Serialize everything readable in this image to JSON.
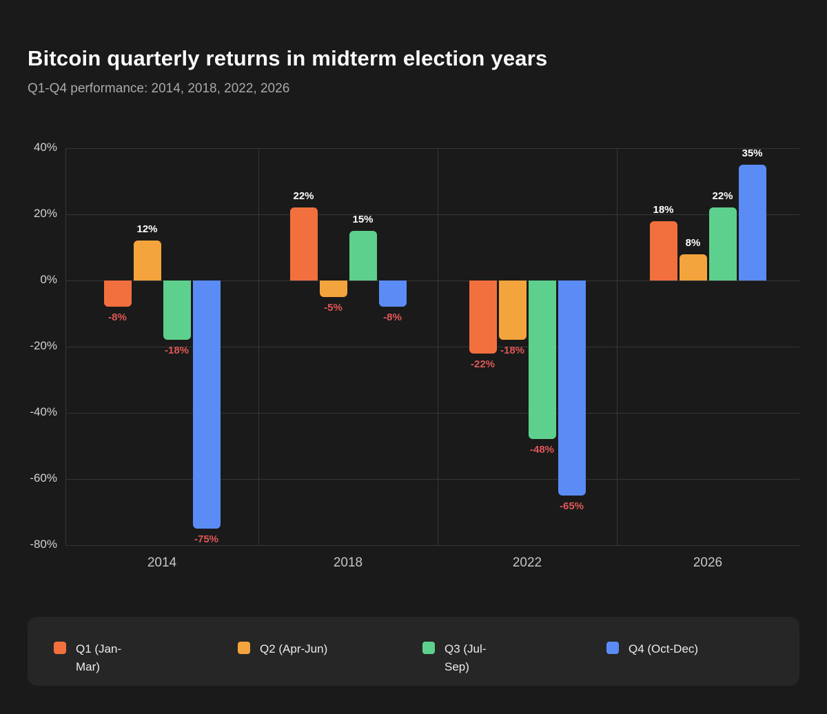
{
  "header": {
    "title": "Bitcoin quarterly returns in midterm election years",
    "subtitle": "Q1-Q4 performance: 2014, 2018, 2022, 2026"
  },
  "chart_data": {
    "type": "bar",
    "title": "Bitcoin quarterly returns in midterm election years",
    "subtitle": "Q1-Q4 performance: 2014, 2018, 2022, 2026",
    "categories": [
      "2014",
      "2018",
      "2022",
      "2026"
    ],
    "series": [
      {
        "name": "Q1 (Jan-Mar)",
        "color": "#f2703e",
        "values": [
          -8,
          22,
          -22,
          18
        ]
      },
      {
        "name": "Q2 (Apr-Jun)",
        "color": "#f4a43c",
        "values": [
          12,
          -5,
          -18,
          8
        ]
      },
      {
        "name": "Q3 (Jul-Sep)",
        "color": "#5ed08d",
        "values": [
          -18,
          15,
          -48,
          22
        ]
      },
      {
        "name": "Q4 (Oct-Dec)",
        "color": "#5b8cf6",
        "values": [
          -75,
          -8,
          -65,
          35
        ]
      }
    ],
    "value_label_format": "{v}%",
    "ylim": [
      -80,
      40
    ],
    "ytick_labels": [
      "40%",
      "20%",
      "0%",
      "-20%",
      "-40%",
      "-60%",
      "-80%"
    ],
    "grid": true,
    "legend_position": "bottom",
    "colors": {
      "positive_label": "#ffffff",
      "negative_label": "#e05757",
      "background": "#1a1a1a",
      "legend_background": "#262626",
      "gridline": "#363636"
    }
  }
}
